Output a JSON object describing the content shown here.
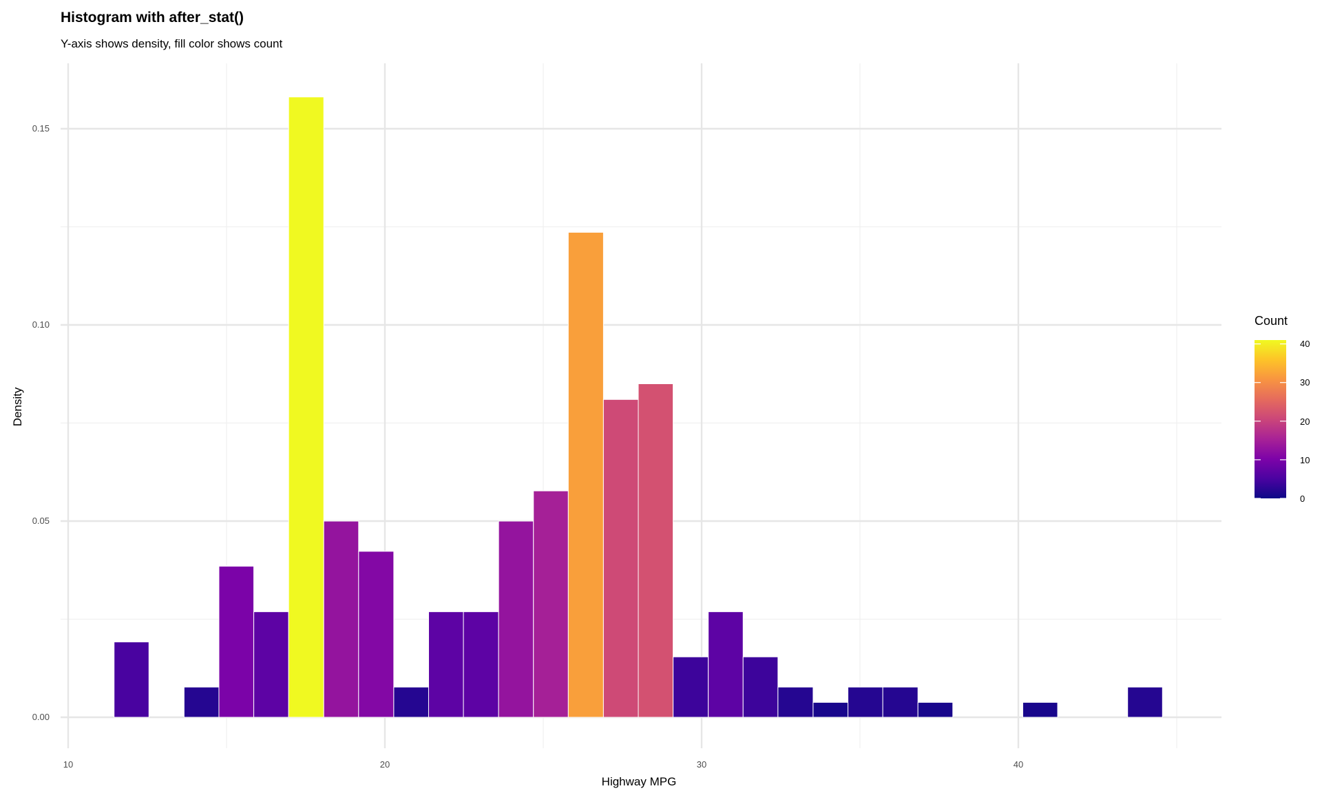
{
  "chart_data": {
    "type": "bar",
    "title": "Histogram with after_stat()",
    "subtitle": "Y-axis shows density, fill color shows count",
    "xlabel": "Highway MPG",
    "ylabel": "Density",
    "xlim": [
      10,
      45
    ],
    "ylim": [
      0,
      0.16
    ],
    "x_ticks": [
      "10",
      "20",
      "30",
      "40"
    ],
    "y_ticks": [
      "0.00",
      "0.05",
      "0.10",
      "0.15"
    ],
    "grid": true,
    "bins": [
      {
        "x0": 11.45,
        "x1": 12.55,
        "density": 0.0192,
        "count": 5
      },
      {
        "x0": 13.66,
        "x1": 14.76,
        "density": 0.0077,
        "count": 2
      },
      {
        "x0": 14.76,
        "x1": 15.86,
        "density": 0.0385,
        "count": 10
      },
      {
        "x0": 15.86,
        "x1": 16.96,
        "density": 0.0269,
        "count": 7
      },
      {
        "x0": 16.96,
        "x1": 18.07,
        "density": 0.1581,
        "count": 41
      },
      {
        "x0": 18.07,
        "x1": 19.17,
        "density": 0.05,
        "count": 13
      },
      {
        "x0": 19.17,
        "x1": 20.28,
        "density": 0.0423,
        "count": 11
      },
      {
        "x0": 20.28,
        "x1": 21.38,
        "density": 0.0077,
        "count": 2
      },
      {
        "x0": 21.38,
        "x1": 22.48,
        "density": 0.0269,
        "count": 7
      },
      {
        "x0": 22.48,
        "x1": 23.59,
        "density": 0.0269,
        "count": 7
      },
      {
        "x0": 23.59,
        "x1": 24.69,
        "density": 0.05,
        "count": 13
      },
      {
        "x0": 24.69,
        "x1": 25.79,
        "density": 0.0577,
        "count": 15
      },
      {
        "x0": 25.79,
        "x1": 26.9,
        "density": 0.1236,
        "count": 32
      },
      {
        "x0": 26.9,
        "x1": 28.0,
        "density": 0.081,
        "count": 21
      },
      {
        "x0": 28.0,
        "x1": 29.1,
        "density": 0.085,
        "count": 22
      },
      {
        "x0": 29.1,
        "x1": 30.21,
        "density": 0.0154,
        "count": 4
      },
      {
        "x0": 30.21,
        "x1": 31.31,
        "density": 0.0269,
        "count": 7
      },
      {
        "x0": 31.31,
        "x1": 32.41,
        "density": 0.0154,
        "count": 4
      },
      {
        "x0": 32.41,
        "x1": 33.52,
        "density": 0.0077,
        "count": 2
      },
      {
        "x0": 33.52,
        "x1": 34.62,
        "density": 0.0038,
        "count": 1
      },
      {
        "x0": 34.62,
        "x1": 35.72,
        "density": 0.0077,
        "count": 2
      },
      {
        "x0": 35.72,
        "x1": 36.83,
        "density": 0.0077,
        "count": 2
      },
      {
        "x0": 36.83,
        "x1": 37.93,
        "density": 0.0038,
        "count": 1
      },
      {
        "x0": 40.14,
        "x1": 41.24,
        "density": 0.0038,
        "count": 1
      },
      {
        "x0": 43.45,
        "x1": 44.55,
        "density": 0.0077,
        "count": 2
      }
    ],
    "legend": {
      "title": "Count",
      "placement": "right",
      "colormap": "plasma",
      "range": [
        0,
        41
      ],
      "breaks": [
        "0",
        "10",
        "20",
        "30",
        "40"
      ]
    }
  }
}
